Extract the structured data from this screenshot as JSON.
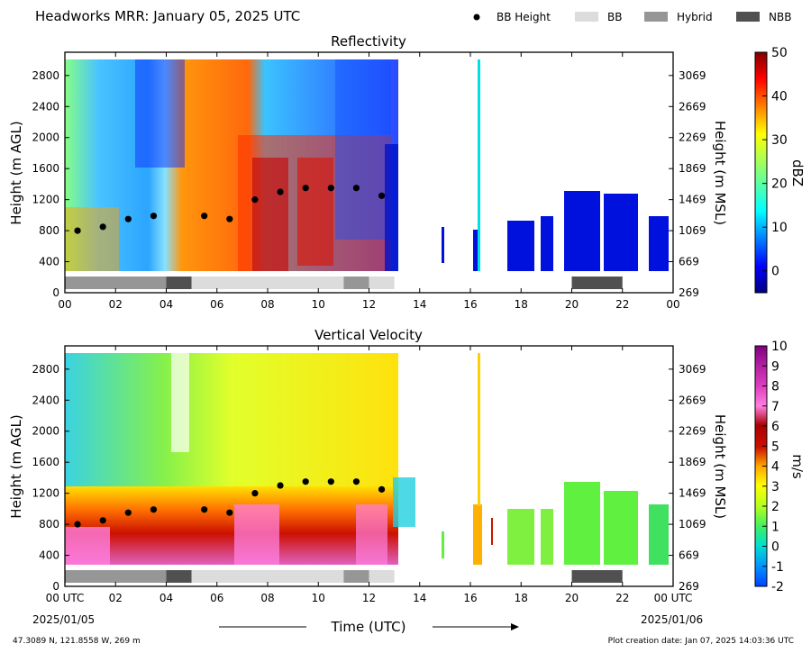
{
  "header": {
    "title": "Headworks MRR:  January 05, 2025 UTC",
    "legend": [
      {
        "label": "BB Height",
        "kind": "dot",
        "color": "#000000"
      },
      {
        "label": "BB",
        "kind": "swatch",
        "color": "#dcdcdc"
      },
      {
        "label": "Hybrid",
        "kind": "swatch",
        "color": "#969696"
      },
      {
        "label": "NBB",
        "kind": "swatch",
        "color": "#505050"
      }
    ]
  },
  "footer": {
    "location": "47.3089 N, 121.8558 W, 269 m",
    "created": "Plot creation date: Jan 07, 2025 14:03:36 UTC",
    "xlabel": "Time (UTC)",
    "start_date": "2025/01/05",
    "end_date": "2025/01/06"
  },
  "colors": {
    "bb": "#dcdcdc",
    "hybrid": "#969696",
    "nbb": "#505050",
    "bb_dot": "#000000"
  },
  "chart_data": [
    {
      "type": "heatmap",
      "title": "Reflectivity",
      "ylabel": "Height (m AGL)",
      "ylabel_right": "Height (m MSL)",
      "colorbar_label": "dBZ",
      "xlim": [
        0,
        24
      ],
      "ylim": [
        0,
        3100
      ],
      "xticks": [
        "00",
        "02",
        "04",
        "06",
        "08",
        "10",
        "12",
        "14",
        "16",
        "18",
        "20",
        "22",
        "00"
      ],
      "yticks": [
        0,
        400,
        800,
        1200,
        1600,
        2000,
        2400,
        2800
      ],
      "yticks_right": [
        269,
        669,
        1069,
        1469,
        1869,
        2269,
        2669,
        3069
      ],
      "cbar_range": [
        -5,
        50
      ],
      "cbar_ticks": [
        0,
        10,
        20,
        30,
        40,
        50
      ],
      "bb_height": {
        "x": [
          0.5,
          1.5,
          2.5,
          3.5,
          5.5,
          6.5,
          7.5,
          8.5,
          9.5,
          10.5,
          11.5,
          12.5
        ],
        "y": [
          800,
          850,
          950,
          990,
          990,
          950,
          1200,
          1300,
          1350,
          1350,
          1350,
          1250
        ]
      },
      "bb_type": [
        {
          "start": 0,
          "end": 4,
          "type": "Hybrid"
        },
        {
          "start": 4,
          "end": 5,
          "type": "NBB"
        },
        {
          "start": 5,
          "end": 11,
          "type": "BB"
        },
        {
          "start": 11,
          "end": 12,
          "type": "Hybrid"
        },
        {
          "start": 12,
          "end": 13,
          "type": "BB"
        },
        {
          "start": 20,
          "end": 22,
          "type": "NBB"
        }
      ]
    },
    {
      "type": "heatmap",
      "title": "Vertical Velocity",
      "ylabel": "Height (m AGL)",
      "ylabel_right": "Height (m MSL)",
      "colorbar_label": "m/s",
      "xlim": [
        0,
        24
      ],
      "ylim": [
        0,
        3100
      ],
      "xticks": [
        "00 UTC",
        "02",
        "04",
        "06",
        "08",
        "10",
        "12",
        "14",
        "16",
        "18",
        "20",
        "22",
        "00 UTC"
      ],
      "yticks": [
        0,
        400,
        800,
        1200,
        1600,
        2000,
        2400,
        2800
      ],
      "yticks_right": [
        269,
        669,
        1069,
        1469,
        1869,
        2269,
        2669,
        3069
      ],
      "cbar_range": [
        -2,
        10
      ],
      "cbar_ticks": [
        -2,
        -1,
        0,
        1,
        2,
        3,
        4,
        5,
        6,
        7,
        8,
        9,
        10
      ],
      "bb_height": {
        "x": [
          0.5,
          1.5,
          2.5,
          3.5,
          5.5,
          6.5,
          7.5,
          8.5,
          9.5,
          10.5,
          11.5,
          12.5
        ],
        "y": [
          800,
          850,
          950,
          990,
          990,
          950,
          1200,
          1300,
          1350,
          1350,
          1350,
          1250
        ]
      },
      "bb_type": [
        {
          "start": 0,
          "end": 4,
          "type": "Hybrid"
        },
        {
          "start": 4,
          "end": 5,
          "type": "NBB"
        },
        {
          "start": 5,
          "end": 11,
          "type": "BB"
        },
        {
          "start": 11,
          "end": 12,
          "type": "Hybrid"
        },
        {
          "start": 12,
          "end": 13,
          "type": "BB"
        },
        {
          "start": 20,
          "end": 22,
          "type": "NBB"
        }
      ]
    }
  ]
}
